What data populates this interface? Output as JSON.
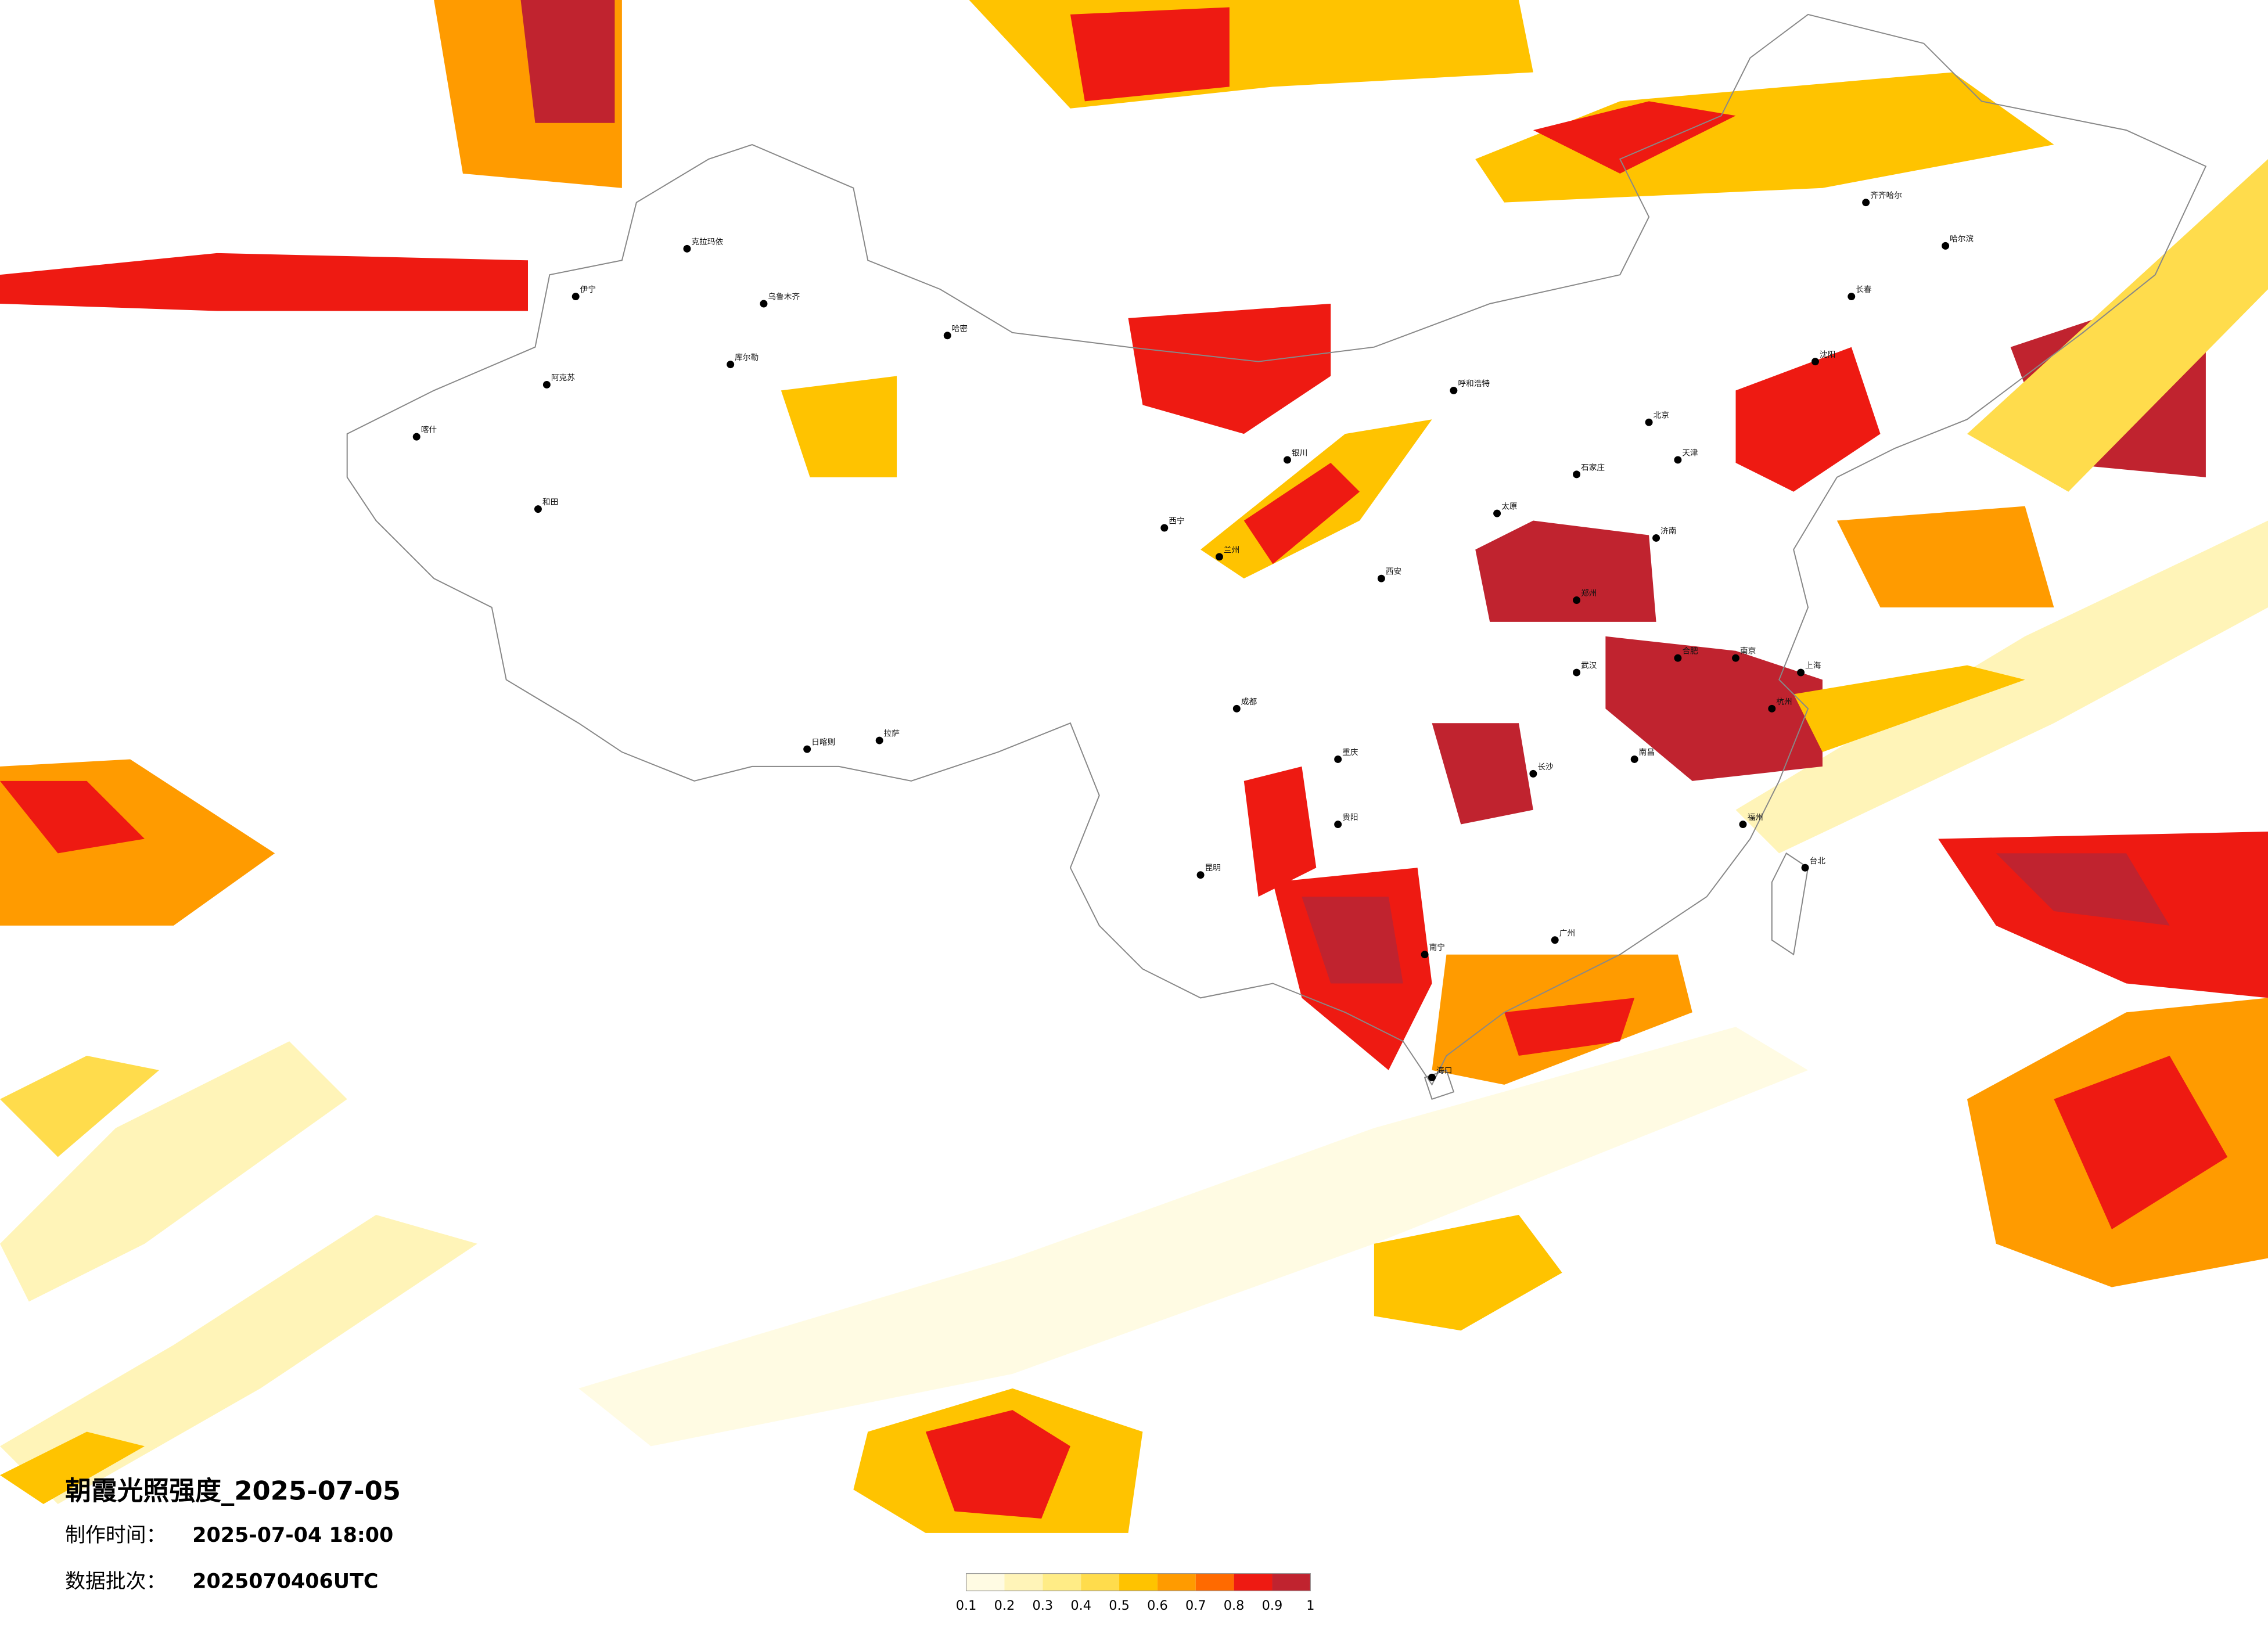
{
  "title": "朝霞光照强度_2025-07-05",
  "info": [
    {
      "label": "制作时间：",
      "value": "2025-07-04 18:00"
    },
    {
      "label": "数据批次：",
      "value": "2025070406UTC"
    }
  ],
  "legend": {
    "colors": [
      "#fffbe3",
      "#fff4b8",
      "#ffec86",
      "#ffdc4c",
      "#ffc300",
      "#ff9b00",
      "#ff6a00",
      "#ee1a12",
      "#c0232f"
    ],
    "ticks": [
      0.1,
      0.2,
      0.3,
      0.4,
      0.5,
      0.6,
      0.7,
      0.8,
      0.9,
      1
    ]
  },
  "cities": [
    "克拉玛依",
    "乌鲁木齐",
    "伊宁",
    "库尔勒",
    "阿克苏",
    "喀什",
    "和田",
    "哈密",
    "拉萨",
    "日喀则",
    "西宁",
    "兰州",
    "银川",
    "呼和浩特",
    "北京",
    "天津",
    "石家庄",
    "太原",
    "济南",
    "郑州",
    "西安",
    "成都",
    "重庆",
    "武汉",
    "合肥",
    "南京",
    "上海",
    "杭州",
    "南昌",
    "长沙",
    "贵阳",
    "昆明",
    "南宁",
    "广州",
    "福州",
    "台北",
    "海口",
    "沈阳",
    "长春",
    "哈尔滨",
    "齐齐哈尔"
  ]
}
